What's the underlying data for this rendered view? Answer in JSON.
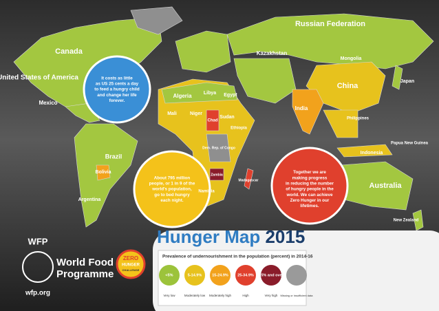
{
  "title": "Hunger Map",
  "year": "2015",
  "callouts": [
    [
      "It costs as little",
      "as US 25 cents a day",
      "to feed a hungry child",
      "and change her life",
      "forever."
    ],
    [
      "About 795 million",
      "people, or 1 in 9 of the",
      "world's population,",
      "go to bed hungry",
      "each night."
    ],
    [
      "Together we are",
      "making progress",
      "in reducing the number",
      "of hungry people in the",
      "world. We can achieve",
      "Zero Hunger in our",
      "lifetimes."
    ]
  ],
  "countries": [
    "Canada",
    "United States of America",
    "Mexico",
    "Brazil",
    "Bolivia",
    "Argentina",
    "Russian Federation",
    "Kazakhstan",
    "Mongolia",
    "China",
    "India",
    "Japan",
    "Philippines",
    "Indonesia",
    "Papua New Guinea",
    "Australia",
    "New Zealand",
    "Algeria",
    "Libya",
    "Egypt",
    "Mali",
    "Niger",
    "Chad",
    "Sudan",
    "Ethiopia",
    "Dem. Rep. of Congo",
    "Zambia",
    "Namibia",
    "Madagascar"
  ],
  "legend": {
    "title": "Prevalence of undernourishment in the population (percent) in 2014-16",
    "items": [
      {
        "range": "<5%",
        "label": "Very low",
        "color": "#9cc33b"
      },
      {
        "range": "5-14.9%",
        "label": "Moderately low",
        "color": "#e7c21d"
      },
      {
        "range": "15-24.9%",
        "label": "Moderately high",
        "color": "#f2a21c"
      },
      {
        "range": "25-34.9%",
        "label": "High",
        "color": "#e0402d"
      },
      {
        "range": "35% and over",
        "label": "Very high",
        "color": "#8a1c2a"
      }
    ],
    "missing": {
      "label": "Missing or insufficient data",
      "color": "#9a9a9a"
    }
  },
  "logo": {
    "acronym": "WFP",
    "name": [
      "World Food",
      "Programme"
    ],
    "url": "wfp.org",
    "badge": [
      "ZERO",
      "HUNGER",
      "CHALLENGE"
    ]
  }
}
